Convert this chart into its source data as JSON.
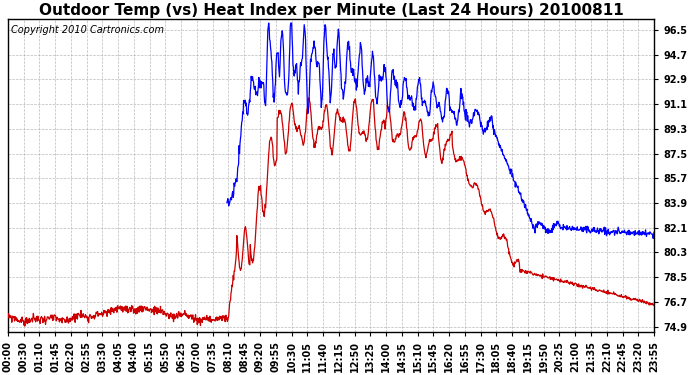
{
  "title": "Outdoor Temp (vs) Heat Index per Minute (Last 24 Hours) 20100811",
  "copyright": "Copyright 2010 Cartronics.com",
  "yticks": [
    74.9,
    76.7,
    78.5,
    80.3,
    82.1,
    83.9,
    85.7,
    87.5,
    89.3,
    91.1,
    92.9,
    94.7,
    96.5
  ],
  "ylim": [
    74.5,
    97.3
  ],
  "xtick_labels": [
    "00:00",
    "00:30",
    "01:10",
    "01:45",
    "02:20",
    "02:55",
    "03:30",
    "04:05",
    "04:40",
    "05:15",
    "05:50",
    "06:25",
    "07:00",
    "07:35",
    "08:10",
    "08:45",
    "09:20",
    "09:55",
    "10:30",
    "11:05",
    "11:40",
    "12:15",
    "12:50",
    "13:25",
    "14:00",
    "14:35",
    "15:10",
    "15:45",
    "16:20",
    "16:55",
    "17:30",
    "18:05",
    "18:40",
    "19:15",
    "19:50",
    "20:25",
    "21:00",
    "21:35",
    "22:10",
    "22:45",
    "23:20",
    "23:55"
  ],
  "bg_color": "#ffffff",
  "grid_color": "#aaaaaa",
  "line_color_blue": "#0000ff",
  "line_color_red": "#cc0000",
  "title_fontsize": 11,
  "tick_fontsize": 7,
  "copyright_fontsize": 7
}
